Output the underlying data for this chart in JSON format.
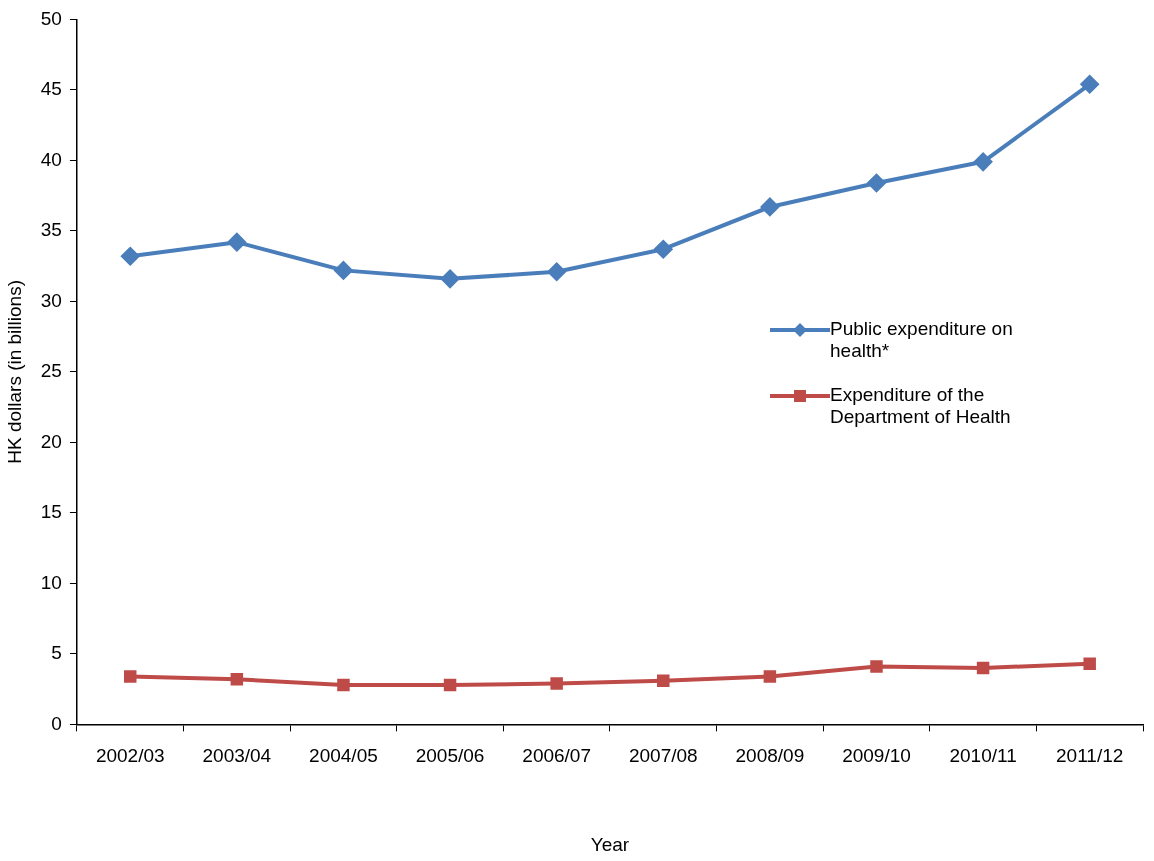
{
  "chart_data": {
    "type": "line",
    "xlabel": "Year",
    "ylabel": "HK dollars (in billions)",
    "categories": [
      "2002/03",
      "2003/04",
      "2004/05",
      "2005/06",
      "2006/07",
      "2007/08",
      "2008/09",
      "2009/10",
      "2010/11",
      "2011/12"
    ],
    "series": [
      {
        "name": "Public expenditure on health*",
        "color": "#4a7ebb",
        "marker": "diamond",
        "values": [
          33.2,
          34.2,
          32.2,
          31.6,
          32.1,
          33.7,
          36.7,
          38.4,
          39.9,
          45.4
        ]
      },
      {
        "name": "Expenditure of the Department of Health",
        "color": "#be4b48",
        "marker": "square",
        "values": [
          3.4,
          3.2,
          2.8,
          2.8,
          2.9,
          3.1,
          3.4,
          4.1,
          4.0,
          4.3
        ]
      }
    ],
    "ylim": [
      0,
      50
    ],
    "yticks": [
      0,
      5,
      10,
      15,
      20,
      25,
      30,
      35,
      40,
      45,
      50
    ],
    "grid": false,
    "legend": "right",
    "line_style": "solid"
  }
}
